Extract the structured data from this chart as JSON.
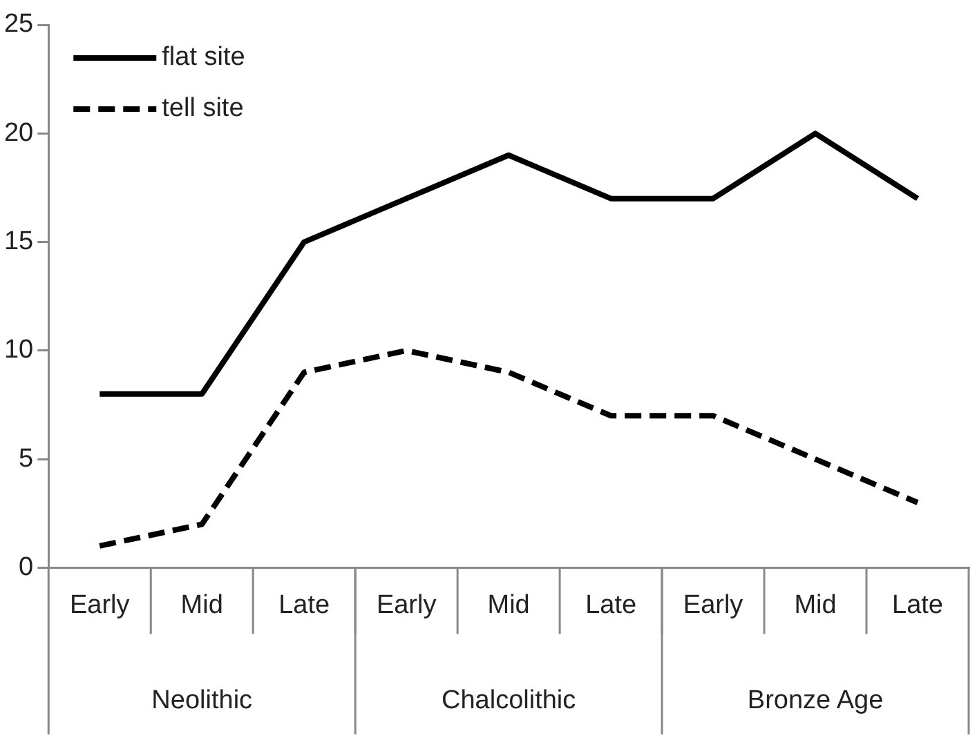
{
  "chart_data": {
    "type": "line",
    "categories": [
      "Early",
      "Mid",
      "Late",
      "Early",
      "Mid",
      "Late",
      "Early",
      "Mid",
      "Late"
    ],
    "series": [
      {
        "name": "flat site",
        "color": "#000000",
        "line_style": "solid",
        "values": [
          8,
          8,
          15,
          17,
          19,
          17,
          17,
          20,
          17
        ]
      },
      {
        "name": "tell site",
        "color": "#000000",
        "line_style": "dashed",
        "values": [
          1,
          2,
          9,
          10,
          9,
          7,
          7,
          5,
          3
        ]
      }
    ],
    "ylim": [
      0,
      25
    ],
    "yticks": [
      0,
      5,
      10,
      15,
      20,
      25
    ],
    "grid": false,
    "legend": "top left",
    "marker": "none",
    "annotations": [
      "Neolithic",
      "Chalcolithic",
      "Bronze Age"
    ]
  }
}
